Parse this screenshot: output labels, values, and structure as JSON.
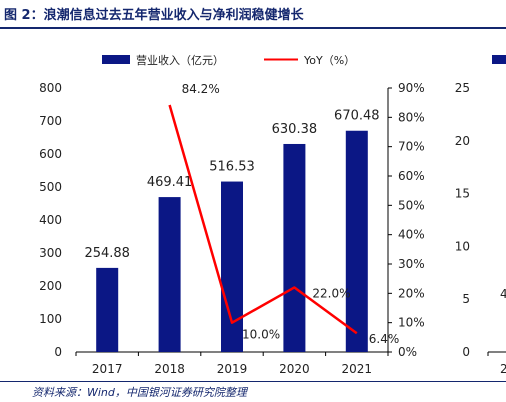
{
  "figure": {
    "title": "图 2：浪潮信息过去五年营业收入与净利润稳健增长",
    "source": "资料来源：Wind，中国银河证券研究院整理"
  },
  "colors": {
    "bar": "#0b1785",
    "line": "#ff0000",
    "accent": "#14276e"
  },
  "chart_data": [
    {
      "type": "bar+line",
      "categories": [
        "2017",
        "2018",
        "2019",
        "2020",
        "2021"
      ],
      "series": [
        {
          "name": "营业收入（亿元）",
          "type": "bar",
          "axis": "left",
          "values": [
            254.88,
            469.41,
            516.53,
            630.38,
            670.48
          ],
          "labels": [
            "254.88",
            "469.41",
            "516.53",
            "630.38",
            "670.48"
          ]
        },
        {
          "name": "YoY（%）",
          "type": "line",
          "axis": "right",
          "values": [
            null,
            84.2,
            10.0,
            22.0,
            6.4
          ],
          "labels": [
            "",
            "84.2%",
            "10.0%",
            "22.0%",
            "6.4%"
          ]
        }
      ],
      "y_left": {
        "lim": [
          0,
          800
        ],
        "ticks": [
          "0",
          "100",
          "200",
          "300",
          "400",
          "500",
          "600",
          "700",
          "800"
        ]
      },
      "y_right": {
        "lim": [
          0,
          90
        ],
        "ticks": [
          "0%",
          "10%",
          "20%",
          "30%",
          "40%",
          "50%",
          "60%",
          "70%",
          "80%",
          "90%"
        ]
      },
      "legend": "top",
      "grid": false
    },
    {
      "type": "bar",
      "note": "partially visible second chart, cropped at right edge",
      "series": [
        {
          "name": "",
          "values": []
        }
      ],
      "y_left": {
        "lim": [
          0,
          25
        ],
        "ticks": [
          "0",
          "5",
          "10",
          "15",
          "20",
          "25"
        ]
      },
      "visible_fragments": [
        "4",
        "2"
      ]
    }
  ]
}
